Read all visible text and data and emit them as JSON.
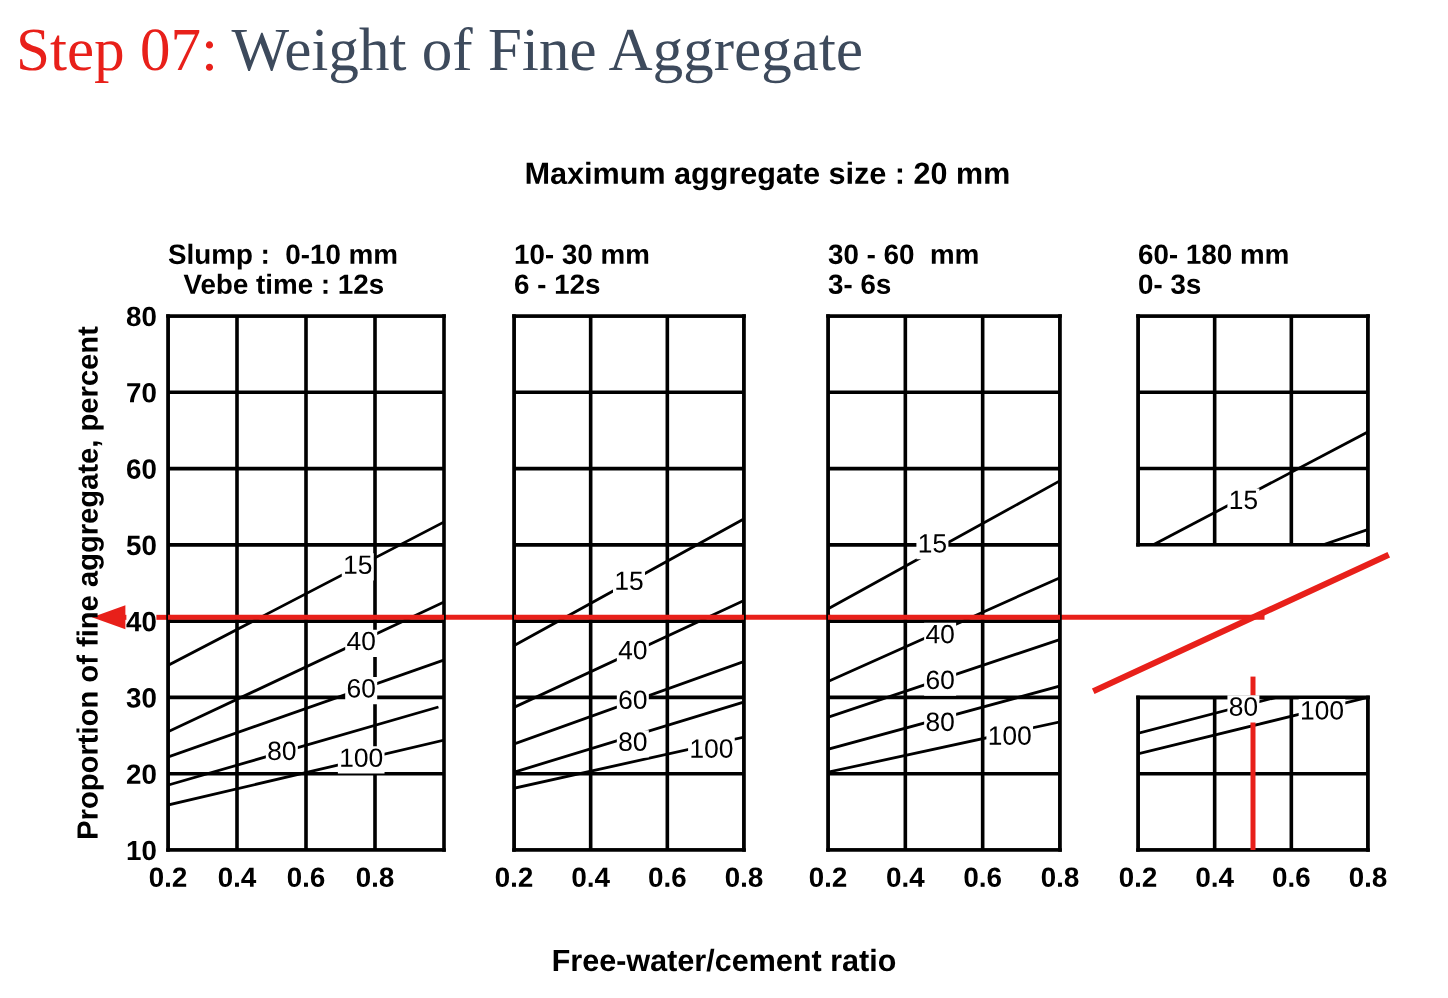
{
  "chart_data": [
    {
      "type": "line",
      "title": "Slump :  0-10 mm\n  Vebe time : 12s",
      "ylabel": "Proportion of fine aggregate, percent",
      "xlabel": "Free-water/cement ratio",
      "xlim": [
        0.2,
        1.0
      ],
      "xticks": [
        0.2,
        0.4,
        0.6,
        0.8
      ],
      "ylim": [
        10,
        80
      ],
      "yticks": [
        10,
        20,
        30,
        40,
        50,
        60,
        70,
        80
      ],
      "grid": true,
      "marker": "none",
      "line_style": "solid",
      "series": [
        {
          "color": "#000000",
          "x": [
            0.2,
            1.0
          ],
          "values": [
            34.2,
            53.0
          ]
        },
        {
          "color": "#000000",
          "x": [
            0.2,
            1.0
          ],
          "values": [
            25.5,
            42.5
          ]
        },
        {
          "color": "#000000",
          "x": [
            0.2,
            1.0
          ],
          "values": [
            22.2,
            34.9
          ]
        },
        {
          "color": "#000000",
          "x": [
            0.2,
            0.98
          ],
          "values": [
            18.5,
            28.7
          ]
        },
        {
          "color": "#000000",
          "x": [
            0.2,
            1.0
          ],
          "values": [
            15.9,
            24.4
          ]
        }
      ],
      "annotations": [
        "Step 07:",
        "Weight of Fine Aggregate",
        "Maximum aggregate size : 20 mm",
        {
          "text": "15",
          "x": 0.75,
          "y": 47.1
        },
        {
          "text": "40",
          "x": 0.76,
          "y": 37.1
        },
        {
          "text": "60",
          "x": 0.76,
          "y": 30.9
        },
        {
          "text": "80",
          "x": 0.53,
          "y": 22.7
        },
        {
          "text": "100",
          "x": 0.76,
          "y": 21.8
        }
      ],
      "ref_lines": [
        {
          "axis": "y",
          "value": 40.5,
          "color": "#e8201a"
        }
      ]
    },
    {
      "type": "line",
      "title": "10- 30 mm\n6 - 12s",
      "xlim": [
        0.2,
        0.8
      ],
      "xticks": [
        0.2,
        0.4,
        0.6,
        0.8
      ],
      "ylim": [
        10,
        80
      ],
      "yticks": [
        10,
        20,
        30,
        40,
        50,
        60,
        70,
        80
      ],
      "tick_labels": "x",
      "grid": true,
      "marker": "none",
      "line_style": "solid",
      "series": [
        {
          "color": "#000000",
          "x": [
            0.2,
            0.8
          ],
          "values": [
            36.8,
            53.4
          ]
        },
        {
          "color": "#000000",
          "x": [
            0.2,
            0.8
          ],
          "values": [
            28.7,
            42.7
          ]
        },
        {
          "color": "#000000",
          "x": [
            0.2,
            0.8
          ],
          "values": [
            23.9,
            34.7
          ]
        },
        {
          "color": "#000000",
          "x": [
            0.2,
            0.8
          ],
          "values": [
            20.2,
            29.4
          ]
        },
        {
          "color": "#000000",
          "x": [
            0.2,
            0.8
          ],
          "values": [
            18.1,
            24.8
          ]
        }
      ],
      "annotations": [
        {
          "text": "15",
          "x": 0.5,
          "y": 45.0
        },
        {
          "text": "40",
          "x": 0.51,
          "y": 35.9
        },
        {
          "text": "60",
          "x": 0.51,
          "y": 29.4
        },
        {
          "text": "80",
          "x": 0.51,
          "y": 23.9
        },
        {
          "text": "100",
          "x": 0.715,
          "y": 23.0
        }
      ],
      "ref_lines": [
        {
          "axis": "y",
          "value": 40.5,
          "color": "#e8201a"
        }
      ]
    },
    {
      "type": "line",
      "title": "30 - 60  mm\n3- 6s",
      "xlim": [
        0.2,
        0.8
      ],
      "xticks": [
        0.2,
        0.4,
        0.6,
        0.8
      ],
      "ylim": [
        10,
        80
      ],
      "yticks": [
        10,
        20,
        30,
        40,
        50,
        60,
        70,
        80
      ],
      "tick_labels": "x",
      "grid": true,
      "marker": "none",
      "line_style": "solid",
      "series": [
        {
          "color": "#000000",
          "x": [
            0.2,
            0.8
          ],
          "values": [
            41.6,
            58.4
          ]
        },
        {
          "color": "#000000",
          "x": [
            0.2,
            0.8
          ],
          "values": [
            32.1,
            45.7
          ]
        },
        {
          "color": "#000000",
          "x": [
            0.2,
            0.8
          ],
          "values": [
            27.4,
            37.6
          ]
        },
        {
          "color": "#000000",
          "x": [
            0.2,
            0.8
          ],
          "values": [
            23.2,
            31.5
          ]
        },
        {
          "color": "#000000",
          "x": [
            0.2,
            0.8
          ],
          "values": [
            20.2,
            26.8
          ]
        }
      ],
      "annotations": [
        {
          "text": "15",
          "x": 0.47,
          "y": 49.9
        },
        {
          "text": "40",
          "x": 0.49,
          "y": 38.0
        },
        {
          "text": "60",
          "x": 0.49,
          "y": 32.0
        },
        {
          "text": "80",
          "x": 0.49,
          "y": 26.5
        },
        {
          "text": "100",
          "x": 0.67,
          "y": 24.7
        }
      ],
      "ref_lines": [
        {
          "axis": "y",
          "value": 40.5,
          "color": "#e8201a"
        }
      ]
    },
    {
      "type": "line",
      "title": "60- 180 mm\n0- 3s",
      "xlim": [
        0.2,
        0.8
      ],
      "xticks": [
        0.2,
        0.4,
        0.6,
        0.8
      ],
      "ylim": [
        50,
        80
      ],
      "yticks": [
        50,
        60,
        70,
        80
      ],
      "tick_labels": false,
      "grid": true,
      "marker": "none",
      "line_style": "solid",
      "series": [
        {
          "color": "#000000",
          "x": [
            0.24,
            0.8
          ],
          "values": [
            50,
            64.8
          ]
        },
        {
          "color": "#000000",
          "x": [
            0.683,
            0.8
          ],
          "values": [
            50,
            52.0
          ]
        }
      ],
      "annotations": [
        {
          "text": "15",
          "x": 0.475,
          "y": 55.6
        }
      ]
    },
    {
      "type": "line",
      "xlim": [
        0.2,
        0.8
      ],
      "xticks": [
        0.2,
        0.4,
        0.6,
        0.8
      ],
      "ylim": [
        10,
        30
      ],
      "yticks": [
        10,
        20,
        30
      ],
      "tick_labels": "x",
      "grid": true,
      "marker": "none",
      "line_style": "solid",
      "series": [
        {
          "color": "#000000",
          "x": [
            0.2,
            0.56
          ],
          "values": [
            25.3,
            30
          ]
        },
        {
          "color": "#000000",
          "x": [
            0.2,
            0.8
          ],
          "values": [
            22.6,
            30
          ]
        }
      ],
      "annotations": [
        {
          "text": "80",
          "x": 0.475,
          "y": 28.5
        },
        {
          "text": "100",
          "x": 0.68,
          "y": 28.0
        }
      ],
      "ref_lines": [
        {
          "axis": "x",
          "value": 0.5,
          "color": "#e8201a"
        }
      ]
    }
  ]
}
